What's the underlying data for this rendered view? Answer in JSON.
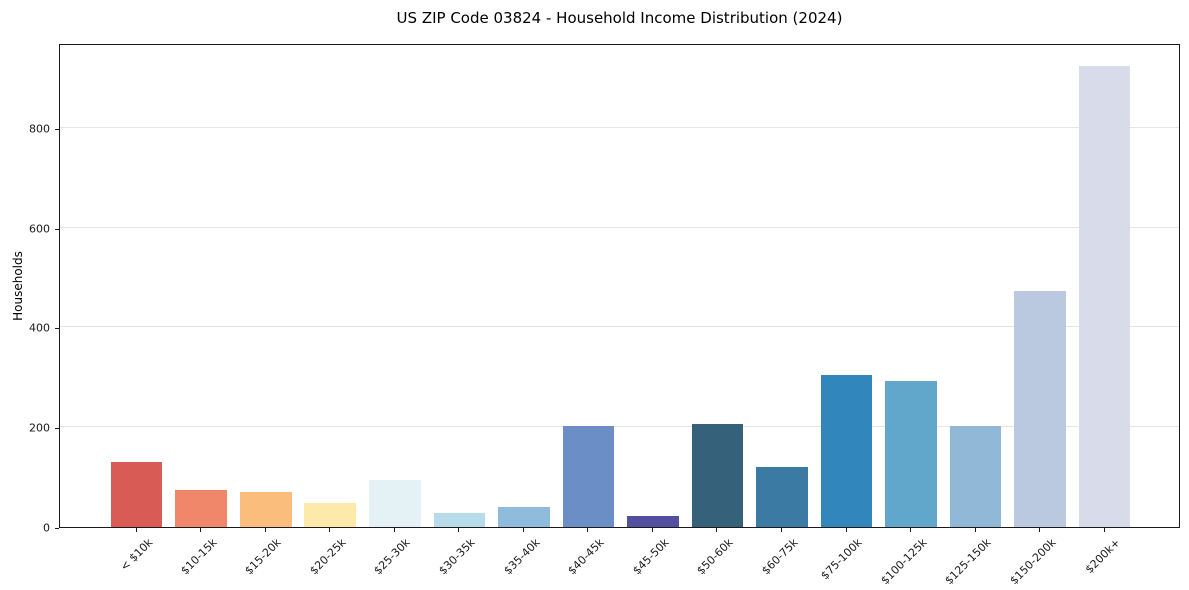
{
  "chart_data": {
    "type": "bar",
    "title": "US ZIP Code 03824 - Household Income Distribution (2024)",
    "xlabel": "",
    "ylabel": "Households",
    "categories": [
      "< $10k",
      "$10-15k",
      "$15-20k",
      "$20-25k",
      "$25-30k",
      "$30-35k",
      "$35-40k",
      "$40-45k",
      "$45-50k",
      "$50-60k",
      "$60-75k",
      "$75-100k",
      "$100-125k",
      "$125-150k",
      "$150-200k",
      "$200k+"
    ],
    "values": [
      130,
      74,
      71,
      48,
      95,
      29,
      41,
      203,
      23,
      206,
      120,
      305,
      292,
      203,
      473,
      923
    ],
    "bar_colors": [
      "#d85c55",
      "#f0866a",
      "#fbbd7c",
      "#fde9a9",
      "#e4f2f6",
      "#b7dbe8",
      "#8fbcdd",
      "#6a8ec5",
      "#5450a0",
      "#35617a",
      "#3b7aa2",
      "#3187bb",
      "#61a7cb",
      "#92b8d8",
      "#bac9e0",
      "#d8dbe9"
    ],
    "ylim": [
      0,
      970
    ],
    "yticks": [
      0,
      200,
      400,
      600,
      800
    ],
    "grid": "horizontal",
    "grid_color": "#e5e5e5",
    "axis_color": "#1a1a1a",
    "background_color": "#ffffff",
    "legend": "none"
  }
}
